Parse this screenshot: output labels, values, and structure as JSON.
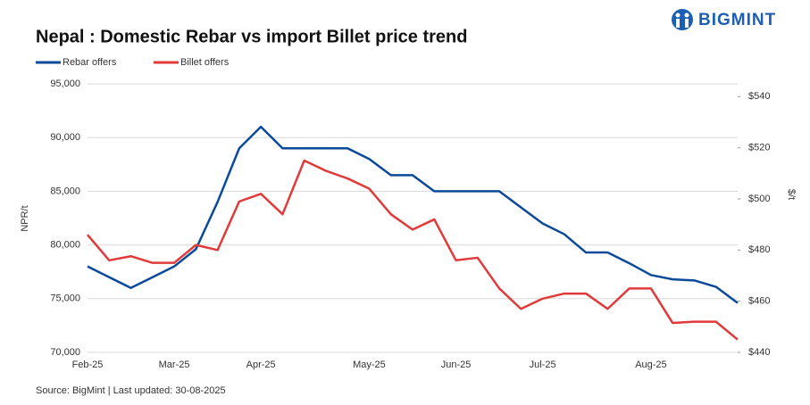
{
  "logo": "BIGMINT",
  "chart_data": {
    "type": "line",
    "title": "Nepal : Domestic Rebar vs import Billet price trend",
    "source": "Source: BigMint | Last updated: 30-08-2025",
    "ylabel": "NPR/t",
    "y2label": "$/t",
    "legend": "top-left",
    "grid": true,
    "categories": [
      "Feb-25",
      null,
      null,
      null,
      "Mar-25",
      null,
      null,
      null,
      "Apr-25",
      null,
      null,
      null,
      null,
      "May-25",
      null,
      null,
      null,
      "Jun-25",
      null,
      null,
      null,
      "Jul-25",
      null,
      null,
      null,
      null,
      "Aug-25",
      null,
      null,
      null,
      null
    ],
    "ylim": [
      70000,
      95000
    ],
    "yticks": [
      {
        "value": 70000,
        "label": "70,000"
      },
      {
        "value": 75000,
        "label": "75,000"
      },
      {
        "value": 80000,
        "label": "80,000"
      },
      {
        "value": 85000,
        "label": "85,000"
      },
      {
        "value": 90000,
        "label": "90,000"
      },
      {
        "value": 95000,
        "label": "95,000"
      }
    ],
    "y2lim": [
      440,
      545
    ],
    "y2ticks": [
      {
        "value": 440,
        "label": "$440"
      },
      {
        "value": 460,
        "label": "$460"
      },
      {
        "value": 480,
        "label": "$480"
      },
      {
        "value": 500,
        "label": "$500"
      },
      {
        "value": 520,
        "label": "$520"
      },
      {
        "value": 540,
        "label": "$540"
      }
    ],
    "series": [
      {
        "name": "Rebar offers",
        "color": "#0b4a9a",
        "values": [
          78000,
          77000,
          76000,
          77000,
          78000,
          79600,
          84000,
          89000,
          91000,
          89000,
          89000,
          89000,
          89000,
          88000,
          86500,
          86500,
          85000,
          85000,
          85000,
          85000,
          83500,
          82000,
          81000,
          79300,
          79300,
          78300,
          77200,
          76800,
          76700,
          76100,
          74600
        ]
      },
      {
        "name": "Billet offers",
        "color": "#e03a3a",
        "axis": "y2",
        "values": [
          486,
          476,
          477.6,
          475,
          475,
          482,
          480,
          499,
          502,
          494,
          515,
          511,
          508,
          504,
          494,
          488,
          492,
          476,
          477,
          465,
          457,
          461,
          463,
          463,
          457,
          465,
          465,
          451.5,
          452,
          452,
          445
        ]
      }
    ]
  }
}
